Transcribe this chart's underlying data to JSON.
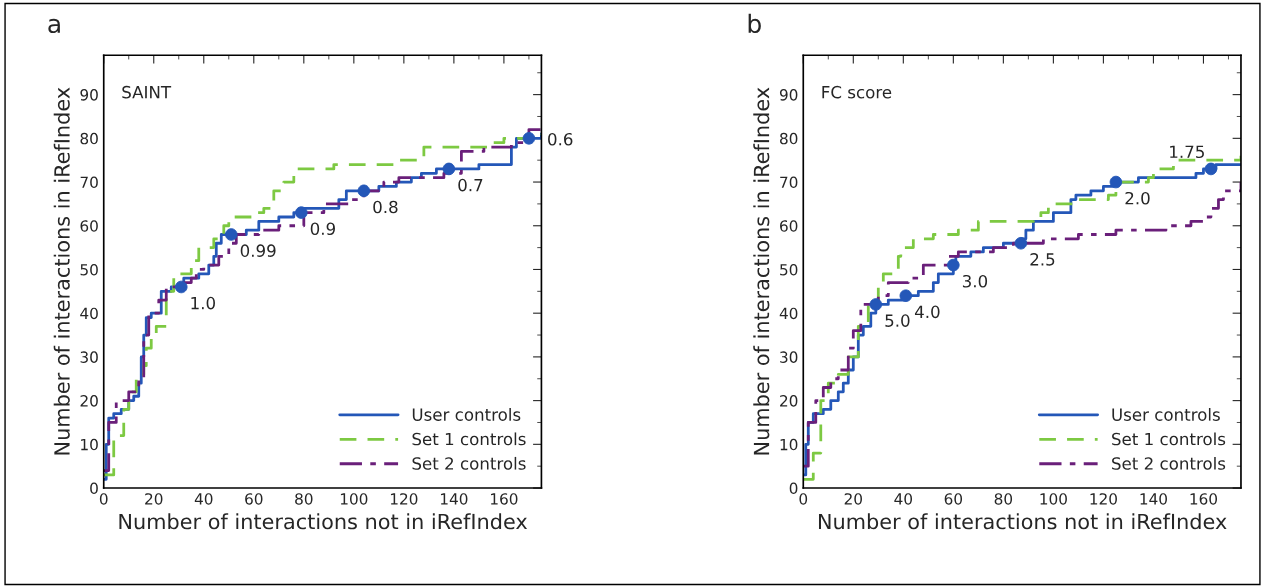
{
  "chart_data": [
    {
      "type": "step",
      "title": "a",
      "xlabel": "Number of interactions not in iRefIndex",
      "ylabel": "Number of interactions in iRefIndex",
      "annotations": [
        "SAINT",
        {
          "text": "1.0",
          "x": 31,
          "y": 46
        },
        {
          "text": "0.99",
          "x": 51,
          "y": 58
        },
        {
          "text": "0.9",
          "x": 79,
          "y": 63
        },
        {
          "text": "0.8",
          "x": 104,
          "y": 68
        },
        {
          "text": "0.7",
          "x": 138,
          "y": 73
        },
        {
          "text": "0.6",
          "x": 170,
          "y": 80
        }
      ],
      "xlim": [
        0,
        175
      ],
      "ylim": [
        0,
        99
      ],
      "xticks": [
        0,
        20,
        40,
        60,
        80,
        100,
        120,
        140,
        160
      ],
      "yticks": [
        0,
        10,
        20,
        30,
        40,
        50,
        60,
        70,
        80,
        90
      ],
      "legend": "bottom right",
      "grid": false,
      "series": [
        {
          "name": "User controls",
          "color": "#2457b8",
          "line_style": "solid",
          "x": [
            0,
            1,
            2,
            4,
            7,
            10,
            12,
            14,
            15,
            16,
            17,
            19,
            23,
            27,
            32,
            38,
            42,
            44,
            45,
            47,
            57,
            62,
            70,
            76,
            80,
            94,
            97,
            110,
            117,
            123,
            127,
            133,
            150,
            163,
            165,
            175
          ],
          "values": [
            2,
            10,
            16,
            17,
            18,
            20,
            21,
            24,
            30,
            35,
            39,
            40,
            45,
            46,
            48,
            49,
            51,
            53,
            56,
            58,
            59,
            61,
            62,
            63,
            64,
            66,
            68,
            69,
            70,
            71,
            72,
            73,
            74,
            78,
            80,
            81
          ]
        },
        {
          "name": "Set 1 controls",
          "color": "#7dc942",
          "line_style": "dashed",
          "x": [
            0,
            4,
            8,
            10,
            13,
            16,
            17,
            19,
            21,
            25,
            28,
            30,
            35,
            38,
            44,
            48,
            50,
            60,
            64,
            68,
            72,
            76,
            92,
            118,
            128,
            155,
            160,
            175
          ],
          "values": [
            3,
            12,
            18,
            22,
            26,
            28,
            32,
            35,
            37,
            45,
            48,
            49,
            52,
            55,
            57,
            60,
            62,
            63,
            64,
            68,
            70,
            73,
            74,
            75,
            78,
            79,
            80,
            81
          ]
        },
        {
          "name": "Set 2 controls",
          "color": "#6a1f7a",
          "line_style": "dashdot",
          "x": [
            0,
            2,
            5,
            10,
            14,
            16,
            18,
            22,
            25,
            30,
            35,
            37,
            40,
            46,
            50,
            53,
            62,
            70,
            80,
            88,
            99,
            104,
            112,
            118,
            136,
            143,
            152,
            163,
            170,
            175
          ],
          "values": [
            4,
            15,
            20,
            22,
            25,
            35,
            40,
            43,
            46,
            47,
            48,
            50,
            51,
            53,
            56,
            58,
            59,
            60,
            63,
            65,
            66,
            68,
            70,
            71,
            72,
            77,
            78,
            79,
            82,
            83
          ]
        },
        {
          "type": "scatter",
          "color": "#2457b8",
          "marker": "circle",
          "x": [
            31,
            51,
            79,
            104,
            138,
            170
          ],
          "values": [
            46,
            58,
            63,
            68,
            73,
            80
          ]
        }
      ]
    },
    {
      "type": "step",
      "title": "b",
      "xlabel": "Number of interactions not in iRefIndex",
      "ylabel": "Number of interactions in iRefIndex",
      "annotations": [
        "FC score",
        {
          "text": "5.0",
          "x": 29,
          "y": 42
        },
        {
          "text": "4.0",
          "x": 41,
          "y": 44
        },
        {
          "text": "3.0",
          "x": 60,
          "y": 51
        },
        {
          "text": "2.5",
          "x": 87,
          "y": 56
        },
        {
          "text": "2.0",
          "x": 125,
          "y": 70
        },
        {
          "text": "1.75",
          "x": 163,
          "y": 73
        }
      ],
      "xlim": [
        0,
        175
      ],
      "ylim": [
        0,
        99
      ],
      "xticks": [
        0,
        20,
        40,
        60,
        80,
        100,
        120,
        140,
        160
      ],
      "yticks": [
        0,
        10,
        20,
        30,
        40,
        50,
        60,
        70,
        80,
        90
      ],
      "legend": "bottom right",
      "grid": false,
      "series": [
        {
          "name": "User controls",
          "color": "#2457b8",
          "line_style": "solid",
          "x": [
            0,
            1,
            2,
            4,
            8,
            11,
            14,
            16,
            18,
            20,
            22,
            24,
            27,
            29,
            34,
            41,
            46,
            52,
            54,
            60,
            61,
            67,
            72,
            80,
            87,
            89,
            92,
            100,
            107,
            109,
            115,
            120,
            124,
            134,
            157,
            160,
            165,
            175
          ],
          "values": [
            3,
            10,
            15,
            17,
            18,
            20,
            22,
            24,
            27,
            30,
            35,
            37,
            40,
            42,
            43,
            44,
            45,
            47,
            49,
            51,
            53,
            54,
            55,
            56,
            57,
            59,
            61,
            63,
            66,
            67,
            68,
            69,
            70,
            71,
            72,
            73,
            74,
            74
          ]
        },
        {
          "name": "Set 1 controls",
          "color": "#7dc942",
          "line_style": "dashed",
          "x": [
            0,
            4,
            7,
            10,
            14,
            18,
            22,
            26,
            30,
            32,
            38,
            39,
            44,
            52,
            62,
            70,
            92,
            95,
            98,
            110,
            122,
            125,
            138,
            140,
            148,
            175
          ],
          "values": [
            2,
            8,
            20,
            24,
            26,
            30,
            37,
            42,
            46,
            49,
            53,
            55,
            57,
            58,
            59,
            61,
            62,
            63,
            65,
            66,
            67,
            70,
            71,
            73,
            75,
            76
          ]
        },
        {
          "name": "Set 2 controls",
          "color": "#6a1f7a",
          "line_style": "dashdot",
          "x": [
            0,
            2,
            5,
            8,
            11,
            14,
            18,
            20,
            23,
            30,
            34,
            42,
            48,
            58,
            62,
            76,
            84,
            96,
            110,
            125,
            145,
            155,
            160,
            163,
            166,
            168,
            175
          ],
          "values": [
            5,
            15,
            20,
            23,
            25,
            27,
            32,
            36,
            42,
            44,
            47,
            48,
            51,
            53,
            54,
            55,
            56,
            57,
            58,
            59,
            60,
            61,
            62,
            64,
            66,
            68,
            70
          ]
        },
        {
          "type": "scatter",
          "color": "#2457b8",
          "marker": "circle",
          "x": [
            29,
            41,
            60,
            87,
            125,
            163
          ],
          "values": [
            42,
            44,
            51,
            56,
            70,
            73
          ]
        }
      ]
    }
  ]
}
